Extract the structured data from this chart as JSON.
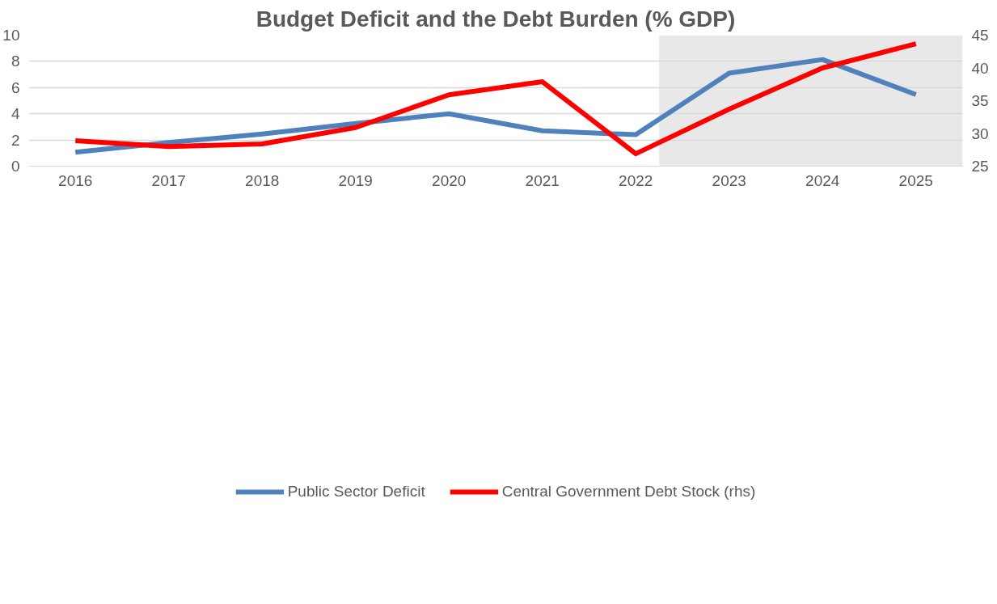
{
  "chart_data": {
    "type": "line",
    "title": "Budget Deficit and the Debt Burden (% GDP)",
    "x": [
      2016,
      2017,
      2018,
      2019,
      2020,
      2021,
      2022,
      2023,
      2024,
      2025
    ],
    "xlim": [
      2015.5,
      2025.5
    ],
    "xticks": [
      2016,
      2017,
      2018,
      2019,
      2020,
      2021,
      2022,
      2023,
      2024,
      2025
    ],
    "ylim": [
      0,
      10
    ],
    "yticks": [
      0,
      2,
      4,
      6,
      8,
      10
    ],
    "y2lim": [
      25,
      45
    ],
    "y2ticks": [
      25,
      30,
      35,
      40,
      45
    ],
    "series": [
      {
        "name": "Public Sector Deficit",
        "color": "#4f81bd",
        "values": [
          1.06,
          1.8,
          2.46,
          3.26,
          4.0,
          2.7,
          2.4,
          7.1,
          8.14,
          5.46
        ]
      },
      {
        "name": "Central Government Debt Stock (rhs)",
        "color": "#ff0000",
        "axis": "y2",
        "values": [
          28.9,
          28.0,
          28.4,
          30.9,
          35.9,
          37.9,
          26.9,
          33.7,
          40.0,
          43.7
        ]
      }
    ],
    "bands": [
      {
        "axis": "x",
        "from": 2022.25,
        "to": 2025.5,
        "color": "#d9d9d9"
      }
    ],
    "grid": "y",
    "legend": "bottom",
    "line_style": "solid",
    "marker": "none"
  }
}
